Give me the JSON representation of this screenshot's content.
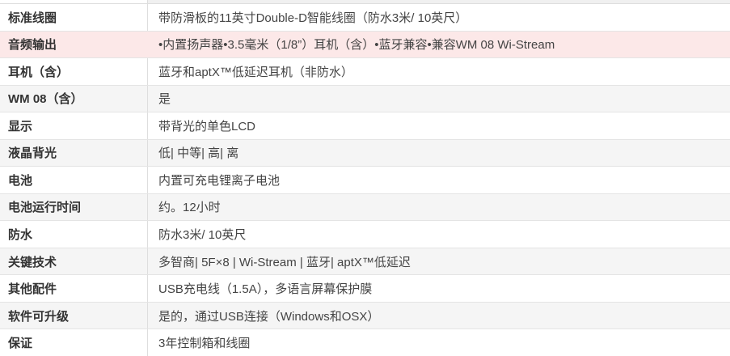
{
  "table": {
    "highlight_color": "#fce8e8",
    "stripe_color": "#f5f5f5",
    "border_color": "#e4e4e4",
    "rows": [
      {
        "label": "标准线圈",
        "value": "带防滑板的11英寸Double-D智能线圈（防水3米/ 10英尺）",
        "highlight": false
      },
      {
        "label": "音频输出",
        "value": "•内置扬声器•3.5毫米（1/8”）耳机（含）•蓝牙兼容•兼容WM 08 Wi-Stream",
        "highlight": true
      },
      {
        "label": "耳机（含）",
        "value": "蓝牙和aptX™低延迟耳机（非防水）",
        "highlight": false
      },
      {
        "label": "WM 08（含）",
        "value": "是",
        "highlight": false
      },
      {
        "label": "显示",
        "value": "带背光的单色LCD",
        "highlight": false
      },
      {
        "label": "液晶背光",
        "value": "低| 中等| 高| 离",
        "highlight": false
      },
      {
        "label": "电池",
        "value": "内置可充电锂离子电池",
        "highlight": false
      },
      {
        "label": "电池运行时间",
        "value": "约。12小时",
        "highlight": false
      },
      {
        "label": "防水",
        "value": "防水3米/ 10英尺",
        "highlight": false
      },
      {
        "label": "关键技术",
        "value": "多智商| 5F×8 | Wi-Stream | 蓝牙| aptX™低延迟",
        "highlight": false
      },
      {
        "label": "其他配件",
        "value": "USB充电线（1.5A），多语言屏幕保护膜",
        "highlight": false
      },
      {
        "label": "软件可升级",
        "value": "是的，通过USB连接（Windows和OSX）",
        "highlight": false
      },
      {
        "label": "保证",
        "value": "3年控制箱和线圈",
        "highlight": false
      }
    ]
  }
}
